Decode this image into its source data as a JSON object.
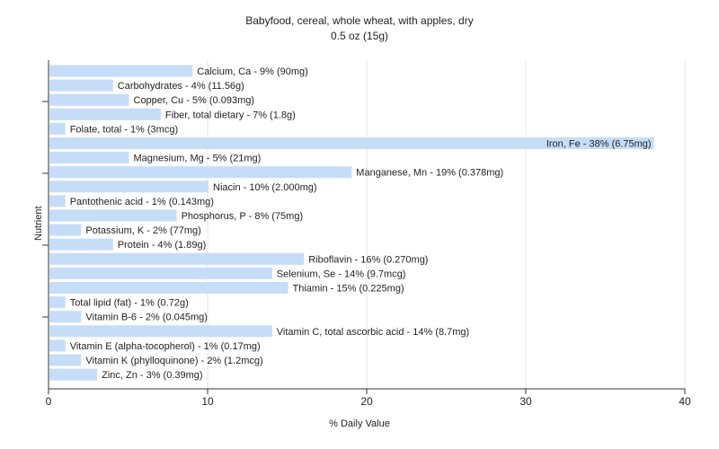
{
  "chart_data": {
    "type": "bar",
    "orientation": "horizontal",
    "title": "Babyfood, cereal, whole wheat, with apples, dry",
    "subtitle": "0.5 oz (15g)",
    "xlabel": "% Daily Value",
    "ylabel": "Nutrient",
    "xlim": [
      0,
      40
    ],
    "xticks": [
      0,
      10,
      20,
      30,
      40
    ],
    "grid": true,
    "bar_color": "#c6ddf8",
    "categories": [
      "Calcium, Ca",
      "Carbohydrates",
      "Copper, Cu",
      "Fiber, total dietary",
      "Folate, total",
      "Iron, Fe",
      "Magnesium, Mg",
      "Manganese, Mn",
      "Niacin",
      "Pantothenic acid",
      "Phosphorus, P",
      "Potassium, K",
      "Protein",
      "Riboflavin",
      "Selenium, Se",
      "Thiamin",
      "Total lipid (fat)",
      "Vitamin B-6",
      "Vitamin C, total ascorbic acid",
      "Vitamin E (alpha-tocopherol)",
      "Vitamin K (phylloquinone)",
      "Zinc, Zn"
    ],
    "values": [
      9,
      4,
      5,
      7,
      1,
      38,
      5,
      19,
      10,
      1,
      8,
      2,
      4,
      16,
      14,
      15,
      1,
      2,
      14,
      1,
      2,
      3
    ],
    "labels": [
      "Calcium, Ca - 9% (90mg)",
      "Carbohydrates - 4% (11.56g)",
      "Copper, Cu - 5% (0.093mg)",
      "Fiber, total dietary - 7% (1.8g)",
      "Folate, total - 1% (3mcg)",
      "Iron, Fe - 38% (6.75mg)",
      "Magnesium, Mg - 5% (21mg)",
      "Manganese, Mn - 19% (0.378mg)",
      "Niacin - 10% (2.000mg)",
      "Pantothenic acid - 1% (0.143mg)",
      "Phosphorus, P - 8% (75mg)",
      "Potassium, K - 2% (77mg)",
      "Protein - 4% (1.89g)",
      "Riboflavin - 16% (0.270mg)",
      "Selenium, Se - 14% (9.7mcg)",
      "Thiamin - 15% (0.225mg)",
      "Total lipid (fat) - 1% (0.72g)",
      "Vitamin B-6 - 2% (0.045mg)",
      "Vitamin C, total ascorbic acid - 14% (8.7mg)",
      "Vitamin E (alpha-tocopherol) - 1% (0.17mg)",
      "Vitamin K (phylloquinone) - 2% (1.2mcg)",
      "Zinc, Zn - 3% (0.39mg)"
    ]
  }
}
